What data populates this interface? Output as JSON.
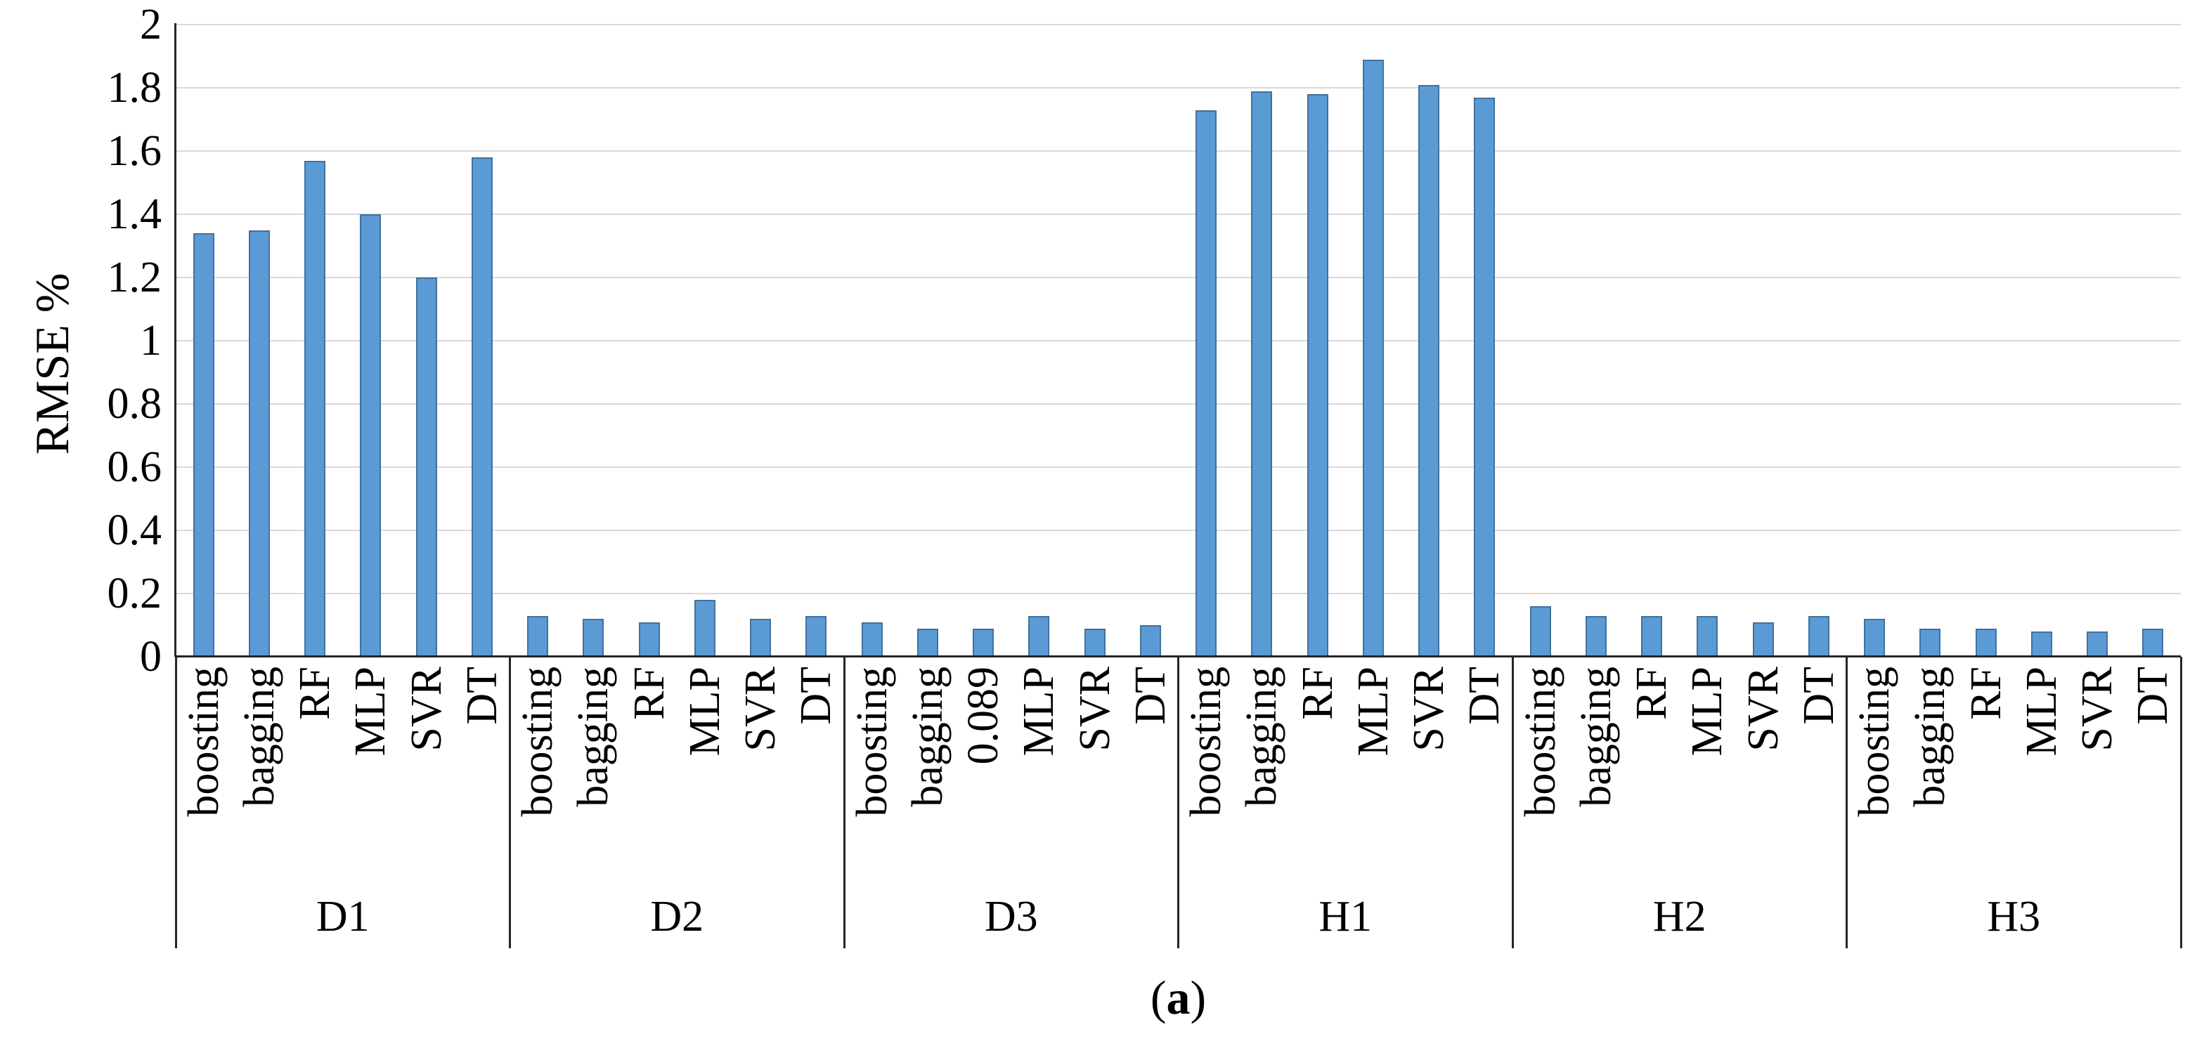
{
  "figure": {
    "ylabel": "RMSE %",
    "caption": {
      "prefix": "(",
      "label": "a",
      "suffix": ")"
    }
  },
  "chart_data": {
    "type": "bar",
    "title": "",
    "xlabel": "",
    "ylabel": "RMSE %",
    "ylim": [
      0,
      2
    ],
    "ytick_step": 0.2,
    "yticks": [
      "2",
      "1.8",
      "1.6",
      "1.4",
      "1.2",
      "1",
      "0.8",
      "0.6",
      "0.4",
      "0.2",
      "0"
    ],
    "grid": "horizontal",
    "legend": "none",
    "bar_color": "#5b9bd5",
    "bar_border_color": "#41719c",
    "gridline_color": "#d9d9d9",
    "axis_color": "#262626",
    "groups": [
      {
        "label": "D1",
        "bars": [
          {
            "label": "boosting",
            "value": 1.34
          },
          {
            "label": "bagging",
            "value": 1.35
          },
          {
            "label": "RF",
            "value": 1.57
          },
          {
            "label": "MLP",
            "value": 1.4
          },
          {
            "label": "SVR",
            "value": 1.2
          },
          {
            "label": "DT",
            "value": 1.58
          }
        ]
      },
      {
        "label": "D2",
        "bars": [
          {
            "label": "boosting",
            "value": 0.13
          },
          {
            "label": "bagging",
            "value": 0.12
          },
          {
            "label": "RF",
            "value": 0.11
          },
          {
            "label": "MLP",
            "value": 0.18
          },
          {
            "label": "SVR",
            "value": 0.12
          },
          {
            "label": "DT",
            "value": 0.13
          }
        ]
      },
      {
        "label": "D3",
        "bars": [
          {
            "label": "boosting",
            "value": 0.11
          },
          {
            "label": "bagging",
            "value": 0.09
          },
          {
            "label": "0.089",
            "value": 0.089
          },
          {
            "label": "MLP",
            "value": 0.13
          },
          {
            "label": "SVR",
            "value": 0.09
          },
          {
            "label": "DT",
            "value": 0.1
          }
        ]
      },
      {
        "label": "H1",
        "bars": [
          {
            "label": "boosting",
            "value": 1.73
          },
          {
            "label": "bagging",
            "value": 1.79
          },
          {
            "label": "RF",
            "value": 1.78
          },
          {
            "label": "MLP",
            "value": 1.89
          },
          {
            "label": "SVR",
            "value": 1.81
          },
          {
            "label": "DT",
            "value": 1.77
          }
        ]
      },
      {
        "label": "H2",
        "bars": [
          {
            "label": "boosting",
            "value": 0.16
          },
          {
            "label": "bagging",
            "value": 0.13
          },
          {
            "label": "RF",
            "value": 0.13
          },
          {
            "label": "MLP",
            "value": 0.13
          },
          {
            "label": "SVR",
            "value": 0.11
          },
          {
            "label": "DT",
            "value": 0.13
          }
        ]
      },
      {
        "label": "H3",
        "bars": [
          {
            "label": "boosting",
            "value": 0.12
          },
          {
            "label": "bagging",
            "value": 0.09
          },
          {
            "label": "RF",
            "value": 0.09
          },
          {
            "label": "MLP",
            "value": 0.08
          },
          {
            "label": "SVR",
            "value": 0.08
          },
          {
            "label": "DT",
            "value": 0.09
          }
        ]
      }
    ]
  }
}
